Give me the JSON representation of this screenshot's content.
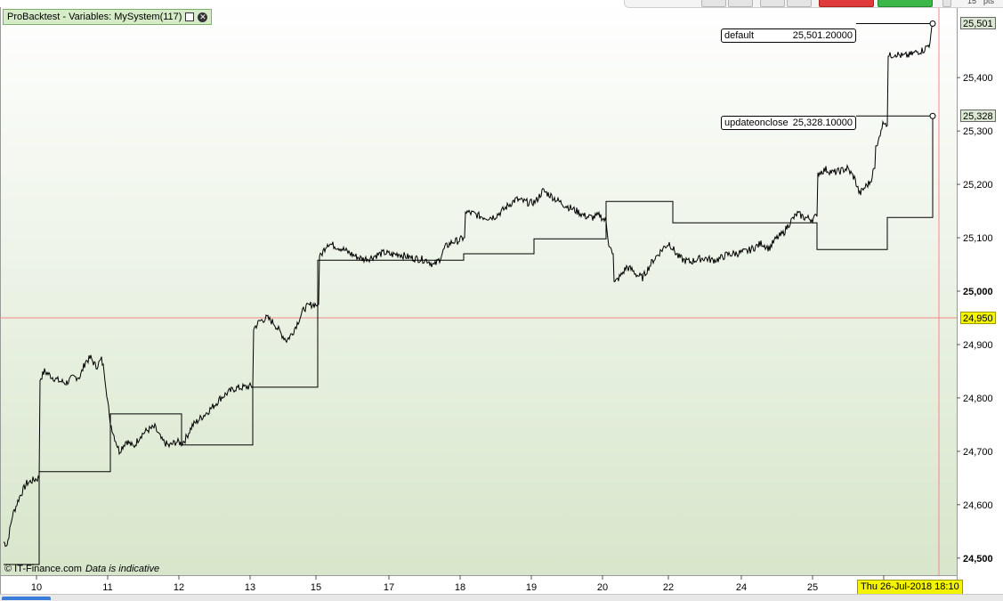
{
  "window": {
    "title": "ProBacktest - Variables: MySystem(117)"
  },
  "footer": {
    "copyright": "© IT-Finance.com",
    "disclaimer": "Data is indicative"
  },
  "toolbar": {
    "zoom_value": "15",
    "units_label": "pts"
  },
  "cursor": {
    "price_label": "24,950",
    "price": 24950,
    "date_label": "Thu 26-Jul-2018 18:10",
    "x_index": 1051
  },
  "colors": {
    "background_top": "#ffffff",
    "background_bottom": "#d7e6cb",
    "line": "#000000",
    "cursor_line": "#f08a8a",
    "cursor_tag": "#f4f400",
    "series_tag": "#dce8d4",
    "title_bar": "#d6ecc8"
  },
  "chart_data": {
    "type": "line",
    "x_tick_labels": [
      "10",
      "11",
      "12",
      "13",
      "15",
      "17",
      "18",
      "19",
      "20",
      "22",
      "24",
      "25",
      "26"
    ],
    "y_tick_labels": [
      "24,500",
      "24,600",
      "24,700",
      "24,800",
      "24,900",
      "25,000",
      "25,100",
      "25,200",
      "25,300",
      "25,400"
    ],
    "y_ticks": [
      24500,
      24600,
      24700,
      24800,
      24900,
      25000,
      25100,
      25200,
      25300,
      25400
    ],
    "ylim": [
      24468,
      25532
    ],
    "grid": false,
    "legend": "top-right",
    "series": [
      {
        "name": "default",
        "last_value_label": "25,501.20000",
        "axis_label": "25,501",
        "last_value": 25501.2,
        "anchors": [
          [
            0,
            24530
          ],
          [
            4,
            24525
          ],
          [
            10,
            24580
          ],
          [
            18,
            24615
          ],
          [
            26,
            24640
          ],
          [
            36,
            24648
          ],
          [
            40,
            24650
          ],
          [
            41,
            24835
          ],
          [
            46,
            24850
          ],
          [
            54,
            24840
          ],
          [
            62,
            24832
          ],
          [
            70,
            24828
          ],
          [
            78,
            24838
          ],
          [
            86,
            24840
          ],
          [
            92,
            24868
          ],
          [
            98,
            24875
          ],
          [
            104,
            24858
          ],
          [
            110,
            24872
          ],
          [
            113,
            24852
          ],
          [
            118,
            24780
          ],
          [
            119,
            24760
          ],
          [
            124,
            24730
          ],
          [
            130,
            24700
          ],
          [
            138,
            24720
          ],
          [
            146,
            24708
          ],
          [
            154,
            24730
          ],
          [
            162,
            24740
          ],
          [
            170,
            24745
          ],
          [
            178,
            24720
          ],
          [
            186,
            24710
          ],
          [
            194,
            24718
          ],
          [
            200,
            24715
          ],
          [
            204,
            24722
          ],
          [
            212,
            24748
          ],
          [
            220,
            24760
          ],
          [
            228,
            24772
          ],
          [
            236,
            24785
          ],
          [
            244,
            24800
          ],
          [
            252,
            24810
          ],
          [
            260,
            24818
          ],
          [
            270,
            24820
          ],
          [
            280,
            24822
          ],
          [
            281,
            24930
          ],
          [
            288,
            24944
          ],
          [
            296,
            24950
          ],
          [
            304,
            24940
          ],
          [
            312,
            24920
          ],
          [
            318,
            24908
          ],
          [
            324,
            24920
          ],
          [
            330,
            24940
          ],
          [
            338,
            24968
          ],
          [
            346,
            24975
          ],
          [
            353,
            24975
          ],
          [
            356,
            25065
          ],
          [
            364,
            25090
          ],
          [
            372,
            25085
          ],
          [
            380,
            25080
          ],
          [
            388,
            25072
          ],
          [
            396,
            25065
          ],
          [
            404,
            25060
          ],
          [
            412,
            25062
          ],
          [
            420,
            25068
          ],
          [
            428,
            25072
          ],
          [
            436,
            25068
          ],
          [
            444,
            25070
          ],
          [
            452,
            25065
          ],
          [
            460,
            25062
          ],
          [
            468,
            25060
          ],
          [
            476,
            25058
          ],
          [
            484,
            25048
          ],
          [
            490,
            25060
          ],
          [
            496,
            25082
          ],
          [
            504,
            25092
          ],
          [
            512,
            25095
          ],
          [
            517,
            25100
          ],
          [
            520,
            25148
          ],
          [
            528,
            25145
          ],
          [
            536,
            25140
          ],
          [
            544,
            25138
          ],
          [
            552,
            25140
          ],
          [
            560,
            25150
          ],
          [
            568,
            25162
          ],
          [
            576,
            25172
          ],
          [
            584,
            25168
          ],
          [
            592,
            25165
          ],
          [
            598,
            25168
          ],
          [
            606,
            25188
          ],
          [
            614,
            25180
          ],
          [
            622,
            25170
          ],
          [
            630,
            25162
          ],
          [
            638,
            25155
          ],
          [
            646,
            25148
          ],
          [
            654,
            25140
          ],
          [
            662,
            25138
          ],
          [
            670,
            25142
          ],
          [
            677,
            25130
          ],
          [
            680,
            25090
          ],
          [
            684,
            25070
          ],
          [
            688,
            25018
          ],
          [
            694,
            25030
          ],
          [
            700,
            25045
          ],
          [
            706,
            25040
          ],
          [
            712,
            25030
          ],
          [
            718,
            25025
          ],
          [
            724,
            25042
          ],
          [
            730,
            25058
          ],
          [
            736,
            25070
          ],
          [
            742,
            25082
          ],
          [
            748,
            25090
          ],
          [
            752,
            25080
          ],
          [
            758,
            25065
          ],
          [
            764,
            25058
          ],
          [
            772,
            25055
          ],
          [
            780,
            25060
          ],
          [
            788,
            25062
          ],
          [
            796,
            25058
          ],
          [
            804,
            25060
          ],
          [
            812,
            25068
          ],
          [
            820,
            25070
          ],
          [
            828,
            25072
          ],
          [
            836,
            25075
          ],
          [
            844,
            25082
          ],
          [
            852,
            25090
          ],
          [
            860,
            25080
          ],
          [
            868,
            25098
          ],
          [
            876,
            25108
          ],
          [
            884,
            25130
          ],
          [
            892,
            25145
          ],
          [
            900,
            25138
          ],
          [
            908,
            25135
          ],
          [
            914,
            25140
          ],
          [
            916,
            25222
          ],
          [
            924,
            25228
          ],
          [
            932,
            25222
          ],
          [
            940,
            25225
          ],
          [
            948,
            25230
          ],
          [
            956,
            25212
          ],
          [
            962,
            25182
          ],
          [
            968,
            25195
          ],
          [
            974,
            25205
          ],
          [
            978,
            25230
          ],
          [
            982,
            25272
          ],
          [
            986,
            25305
          ],
          [
            990,
            25320
          ],
          [
            993,
            25310
          ],
          [
            995,
            25440
          ],
          [
            1002,
            25445
          ],
          [
            1010,
            25440
          ],
          [
            1018,
            25442
          ],
          [
            1026,
            25448
          ],
          [
            1034,
            25452
          ],
          [
            1040,
            25462
          ],
          [
            1042,
            25478
          ],
          [
            1044,
            25501
          ]
        ]
      },
      {
        "name": "updateonclose",
        "last_value_label": "25,328.10000",
        "axis_label": "25,328",
        "last_value": 25328.1,
        "steps": [
          [
            0,
            24488
          ],
          [
            40,
            24662
          ],
          [
            120,
            24770
          ],
          [
            200,
            24712
          ],
          [
            280,
            24820
          ],
          [
            353,
            25058
          ],
          [
            517,
            25070
          ],
          [
            596,
            25098
          ],
          [
            677,
            25168
          ],
          [
            752,
            25128
          ],
          [
            914,
            25078
          ],
          [
            993,
            25138
          ],
          [
            1044,
            25328
          ]
        ]
      }
    ]
  }
}
